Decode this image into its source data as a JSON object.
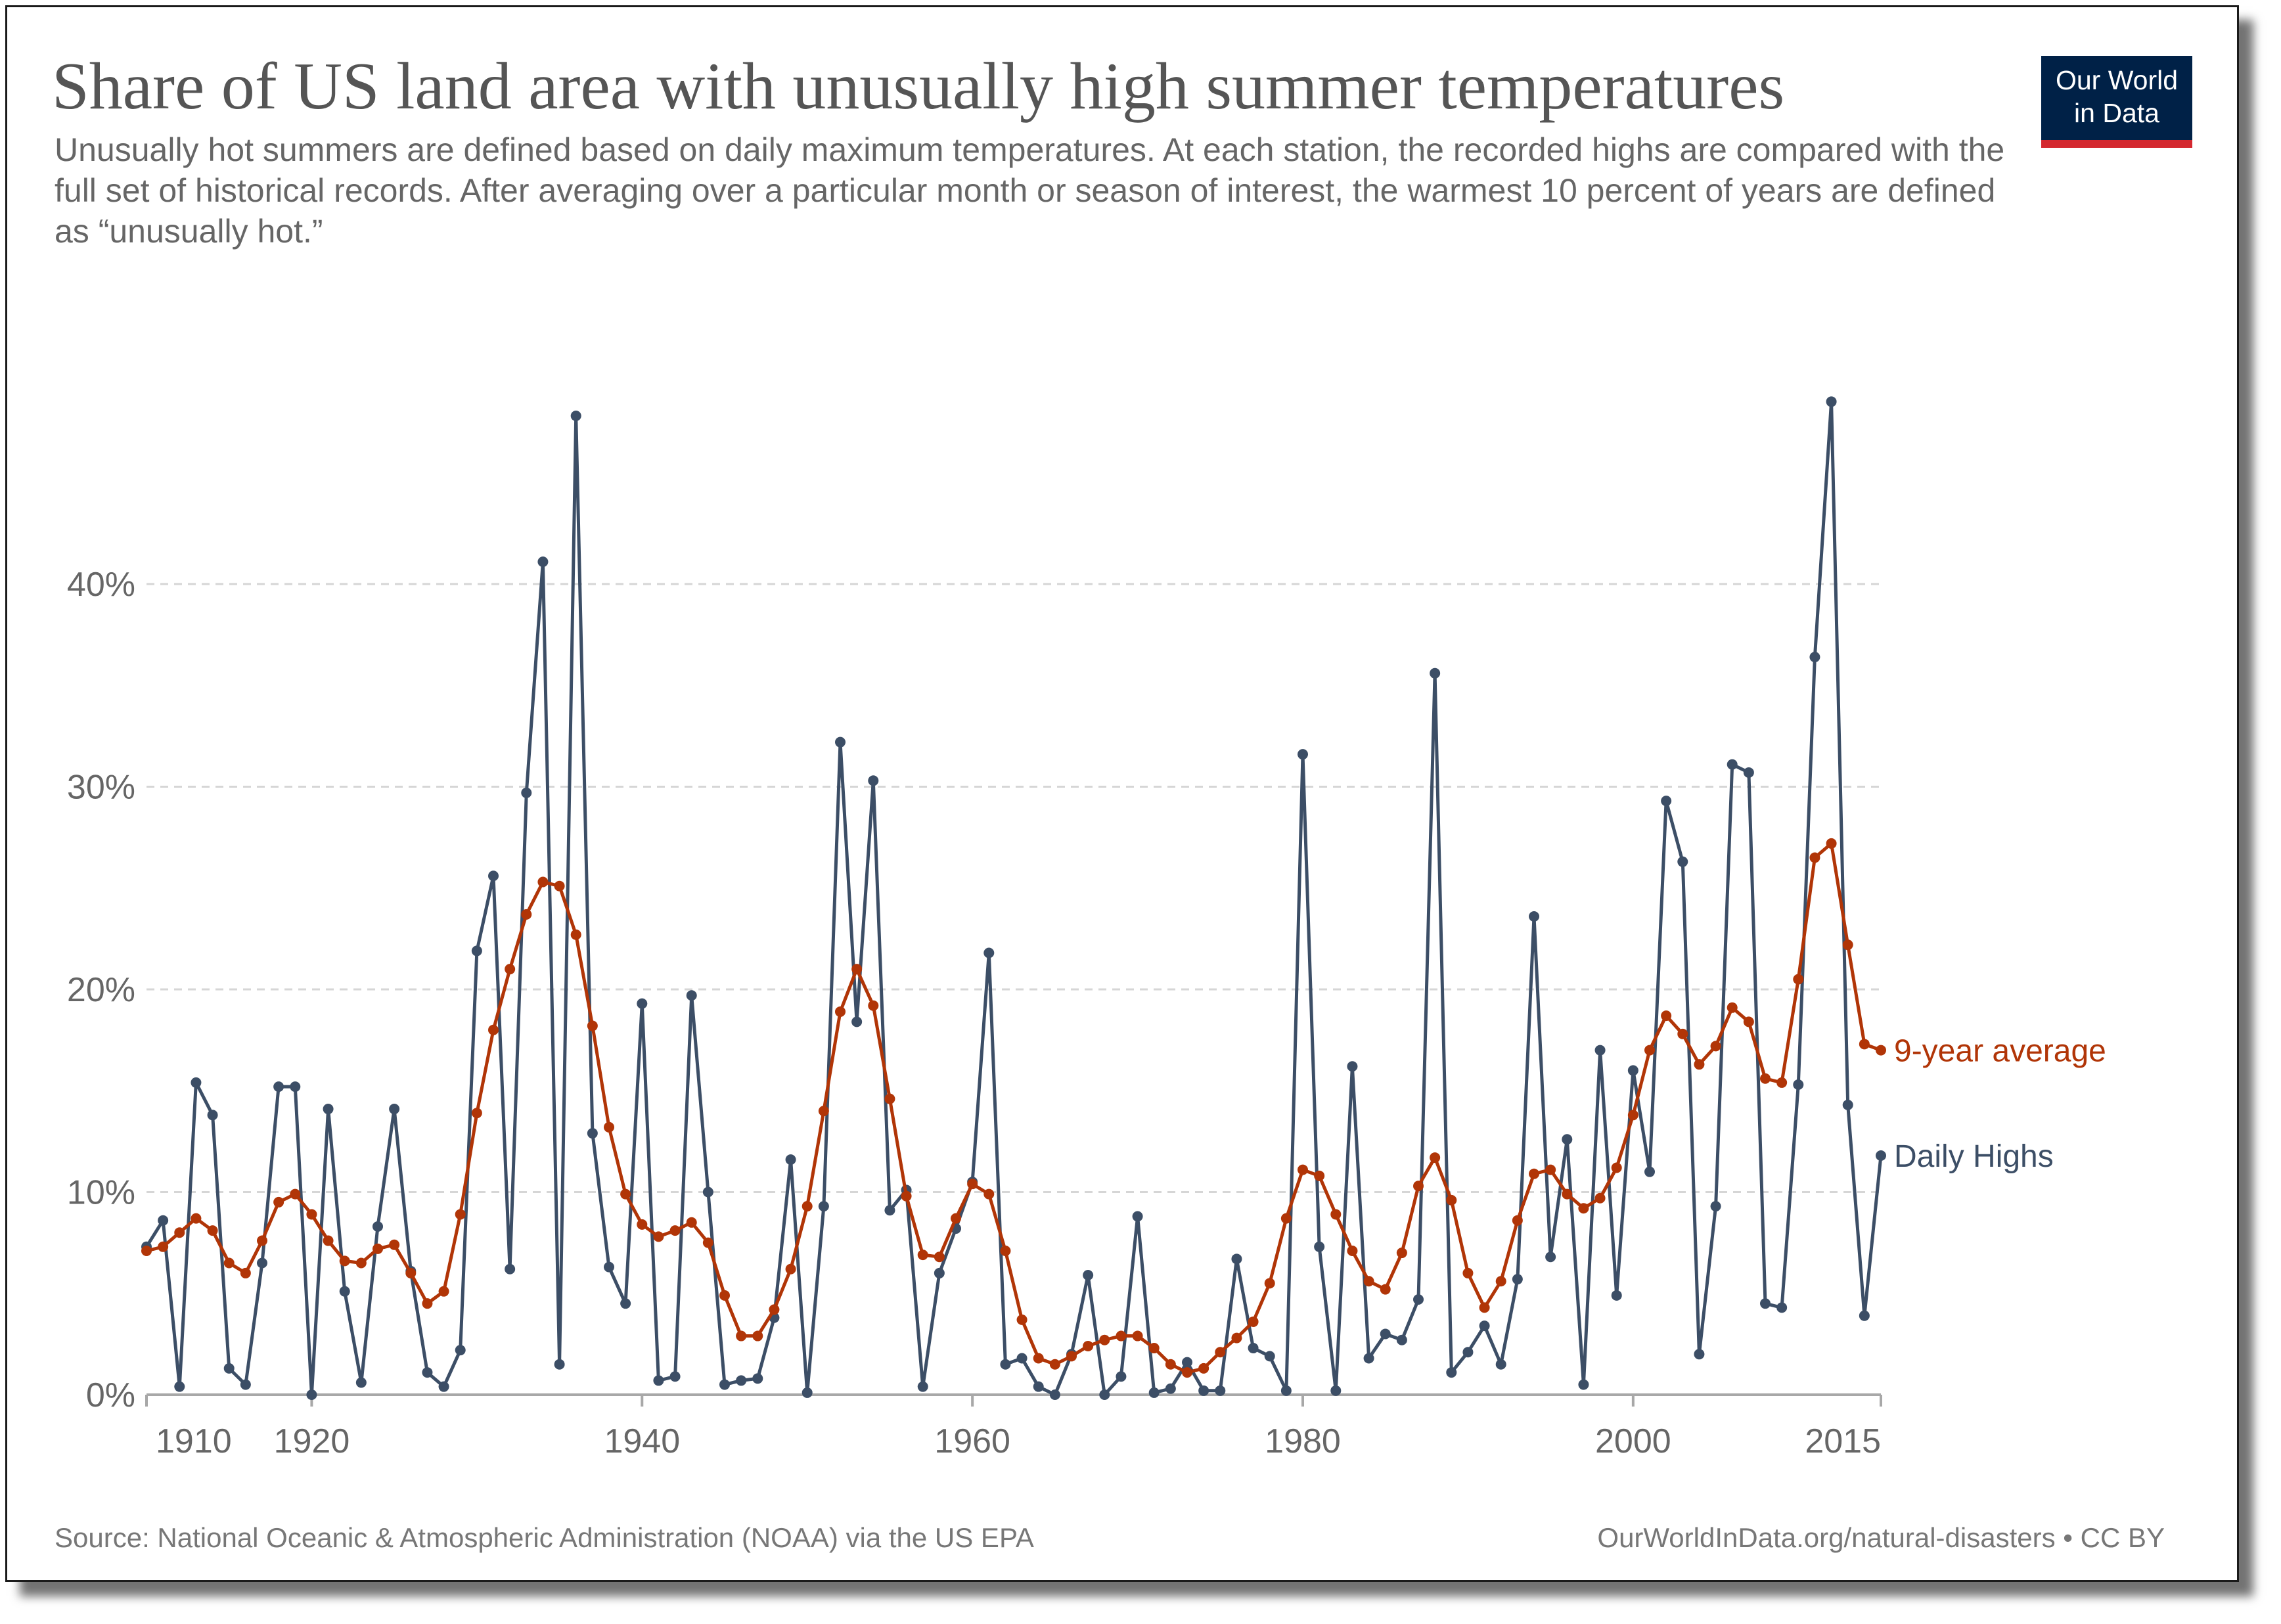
{
  "header": {
    "title": "Share of US land area with unusually high summer temperatures",
    "subtitle": "Unusually hot summers are defined based on daily maximum temperatures. At each station, the recorded highs are compared with the full set of historical records. After averaging over a particular month or season of interest, the warmest 10 percent of years are defined as “unusually hot.”",
    "logo_line1": "Our World",
    "logo_line2": "in Data"
  },
  "footer": {
    "source": "Source: National Oceanic & Atmospheric Administration (NOAA) via the US EPA",
    "license": "OurWorldInData.org/natural-disasters • CC BY"
  },
  "colors": {
    "daily": "#3c4e66",
    "average": "#b13507",
    "logo_bg": "#002147",
    "logo_accent": "#d4282f"
  },
  "chart_data": {
    "type": "line",
    "x_ticks": [
      1910,
      1920,
      1940,
      1960,
      1980,
      2000,
      2015
    ],
    "x_tick_labels": [
      "1910",
      "1920",
      "1940",
      "1960",
      "1980",
      "2000",
      "2015"
    ],
    "y_ticks": [
      0,
      10,
      20,
      30,
      40
    ],
    "y_tick_labels": [
      "0%",
      "10%",
      "20%",
      "30%",
      "40%"
    ],
    "xlim": [
      1910,
      2015
    ],
    "ylim": [
      0,
      50
    ],
    "grid": "horizontal dashed",
    "legend": "inline labels at right end of lines",
    "series": [
      {
        "name": "9-year average",
        "x": [
          1910,
          1911,
          1912,
          1913,
          1914,
          1915,
          1916,
          1917,
          1918,
          1919,
          1920,
          1921,
          1922,
          1923,
          1924,
          1925,
          1926,
          1927,
          1928,
          1929,
          1930,
          1931,
          1932,
          1933,
          1934,
          1935,
          1936,
          1937,
          1938,
          1939,
          1940,
          1941,
          1942,
          1943,
          1944,
          1945,
          1946,
          1947,
          1948,
          1949,
          1950,
          1951,
          1952,
          1953,
          1954,
          1955,
          1956,
          1957,
          1958,
          1959,
          1960,
          1961,
          1962,
          1963,
          1964,
          1965,
          1966,
          1967,
          1968,
          1969,
          1970,
          1971,
          1972,
          1973,
          1974,
          1975,
          1976,
          1977,
          1978,
          1979,
          1980,
          1981,
          1982,
          1983,
          1984,
          1985,
          1986,
          1987,
          1988,
          1989,
          1990,
          1991,
          1992,
          1993,
          1994,
          1995,
          1996,
          1997,
          1998,
          1999,
          2000,
          2001,
          2002,
          2003,
          2004,
          2005,
          2006,
          2007,
          2008,
          2009,
          2010,
          2011,
          2012,
          2013,
          2014,
          2015
        ],
        "values": [
          7.1,
          7.3,
          8.0,
          8.7,
          8.1,
          6.5,
          6.0,
          7.6,
          9.5,
          9.9,
          8.9,
          7.6,
          6.6,
          6.5,
          7.2,
          7.4,
          6.0,
          4.5,
          5.1,
          8.9,
          13.9,
          18.0,
          21.0,
          23.7,
          25.3,
          25.1,
          22.7,
          18.2,
          13.2,
          9.9,
          8.4,
          7.8,
          8.1,
          8.5,
          7.5,
          4.9,
          2.9,
          2.9,
          4.2,
          6.2,
          9.3,
          14.0,
          18.9,
          21.0,
          19.2,
          14.6,
          9.8,
          6.9,
          6.8,
          8.7,
          10.4,
          9.9,
          7.1,
          3.7,
          1.8,
          1.5,
          1.9,
          2.4,
          2.7,
          2.9,
          2.9,
          2.3,
          1.5,
          1.1,
          1.3,
          2.1,
          2.8,
          3.6,
          5.5,
          8.7,
          11.1,
          10.8,
          8.9,
          7.1,
          5.6,
          5.2,
          7.0,
          10.3,
          11.7,
          9.6,
          6.0,
          4.3,
          5.6,
          8.6,
          10.9,
          11.1,
          9.9,
          9.2,
          9.7,
          11.2,
          13.8,
          17.0,
          18.7,
          17.8,
          16.3,
          17.2,
          19.1,
          18.4,
          15.6,
          15.4,
          20.5,
          26.5,
          27.2,
          22.2,
          17.3,
          17.0
        ]
      },
      {
        "name": "Daily Highs",
        "x": [
          1910,
          1911,
          1912,
          1913,
          1914,
          1915,
          1916,
          1917,
          1918,
          1919,
          1920,
          1921,
          1922,
          1923,
          1924,
          1925,
          1926,
          1927,
          1928,
          1929,
          1930,
          1931,
          1932,
          1933,
          1934,
          1935,
          1936,
          1937,
          1938,
          1939,
          1940,
          1941,
          1942,
          1943,
          1944,
          1945,
          1946,
          1947,
          1948,
          1949,
          1950,
          1951,
          1952,
          1953,
          1954,
          1955,
          1956,
          1957,
          1958,
          1959,
          1960,
          1961,
          1962,
          1963,
          1964,
          1965,
          1966,
          1967,
          1968,
          1969,
          1970,
          1971,
          1972,
          1973,
          1974,
          1975,
          1976,
          1977,
          1978,
          1979,
          1980,
          1981,
          1982,
          1983,
          1984,
          1985,
          1986,
          1987,
          1988,
          1989,
          1990,
          1991,
          1992,
          1993,
          1994,
          1995,
          1996,
          1997,
          1998,
          1999,
          2000,
          2001,
          2002,
          2003,
          2004,
          2005,
          2006,
          2007,
          2008,
          2009,
          2010,
          2011,
          2012,
          2013,
          2014,
          2015
        ],
        "values": [
          7.3,
          8.6,
          0.4,
          15.4,
          13.8,
          1.3,
          0.5,
          6.5,
          15.2,
          15.2,
          0.0,
          14.1,
          5.1,
          0.6,
          8.3,
          14.1,
          6.1,
          1.1,
          0.4,
          2.2,
          21.9,
          25.6,
          6.2,
          29.7,
          41.1,
          1.5,
          48.3,
          12.9,
          6.3,
          4.5,
          19.3,
          0.7,
          0.9,
          19.7,
          10.0,
          0.5,
          0.7,
          0.8,
          3.8,
          11.6,
          0.1,
          9.3,
          32.2,
          18.4,
          30.3,
          9.1,
          10.1,
          0.4,
          6.0,
          8.2,
          10.5,
          21.8,
          1.5,
          1.8,
          0.4,
          0.0,
          2.0,
          5.9,
          0.0,
          0.9,
          8.8,
          0.1,
          0.3,
          1.6,
          0.2,
          0.2,
          6.7,
          2.3,
          1.9,
          0.2,
          31.6,
          7.3,
          0.2,
          16.2,
          1.8,
          3.0,
          2.7,
          4.7,
          35.6,
          1.1,
          2.1,
          3.4,
          1.5,
          5.7,
          23.6,
          6.8,
          12.6,
          0.5,
          17.0,
          4.9,
          16.0,
          11.0,
          29.3,
          26.3,
          2.0,
          9.3,
          31.1,
          30.7,
          4.5,
          4.3,
          15.3,
          36.4,
          49.0,
          14.3,
          3.9,
          11.8
        ]
      }
    ]
  }
}
